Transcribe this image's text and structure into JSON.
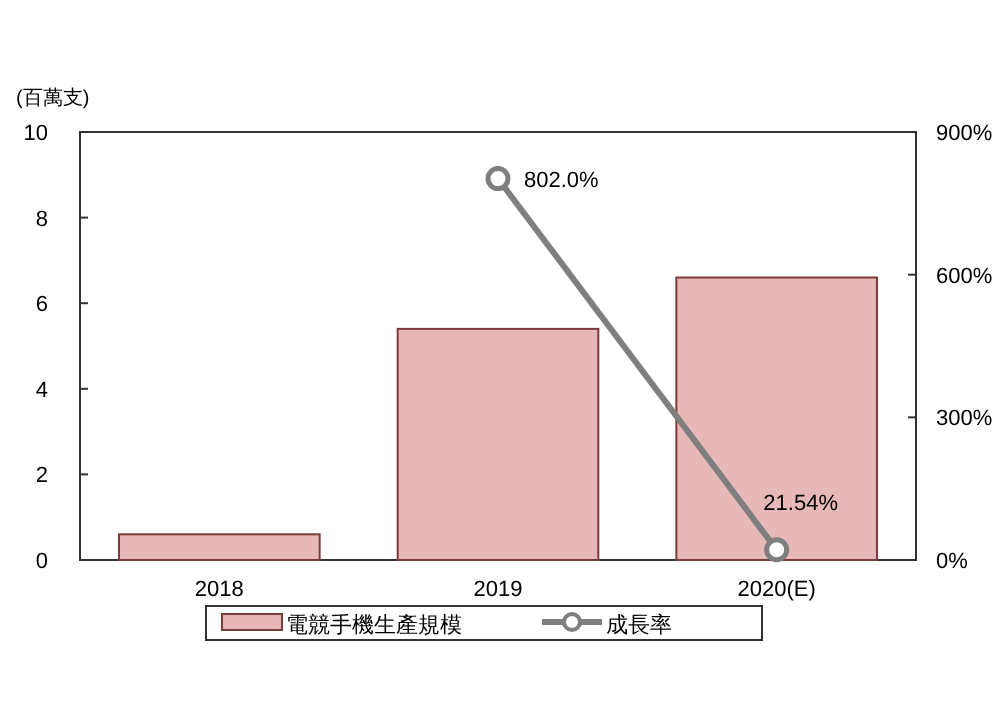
{
  "chart_data": {
    "type": "bar",
    "ylabel": "(百萬支)",
    "categories": [
      "2018",
      "2019",
      "2020(E)"
    ],
    "series": [
      {
        "name": "電競手機生產規模",
        "color": "#e6b8b7",
        "values": [
          0.6,
          5.4,
          6.6
        ]
      },
      {
        "name": "成長率",
        "type": "line",
        "axis": "y2",
        "color": "#7f7f7f",
        "marker": "circle",
        "values": [
          null,
          802.0,
          21.54
        ],
        "value_labels": [
          null,
          "802.0%",
          "21.54%"
        ]
      }
    ],
    "ylim": [
      0,
      10
    ],
    "yticks": [
      0,
      2,
      4,
      6,
      8,
      10
    ],
    "y2lim": [
      0,
      900
    ],
    "y2ticks": [
      {
        "value": 0,
        "label": "0%"
      },
      {
        "value": 300,
        "label": "300%"
      },
      {
        "value": 600,
        "label": "600%"
      },
      {
        "value": 900,
        "label": "900%"
      }
    ],
    "legend": "bottom",
    "grid": false
  }
}
